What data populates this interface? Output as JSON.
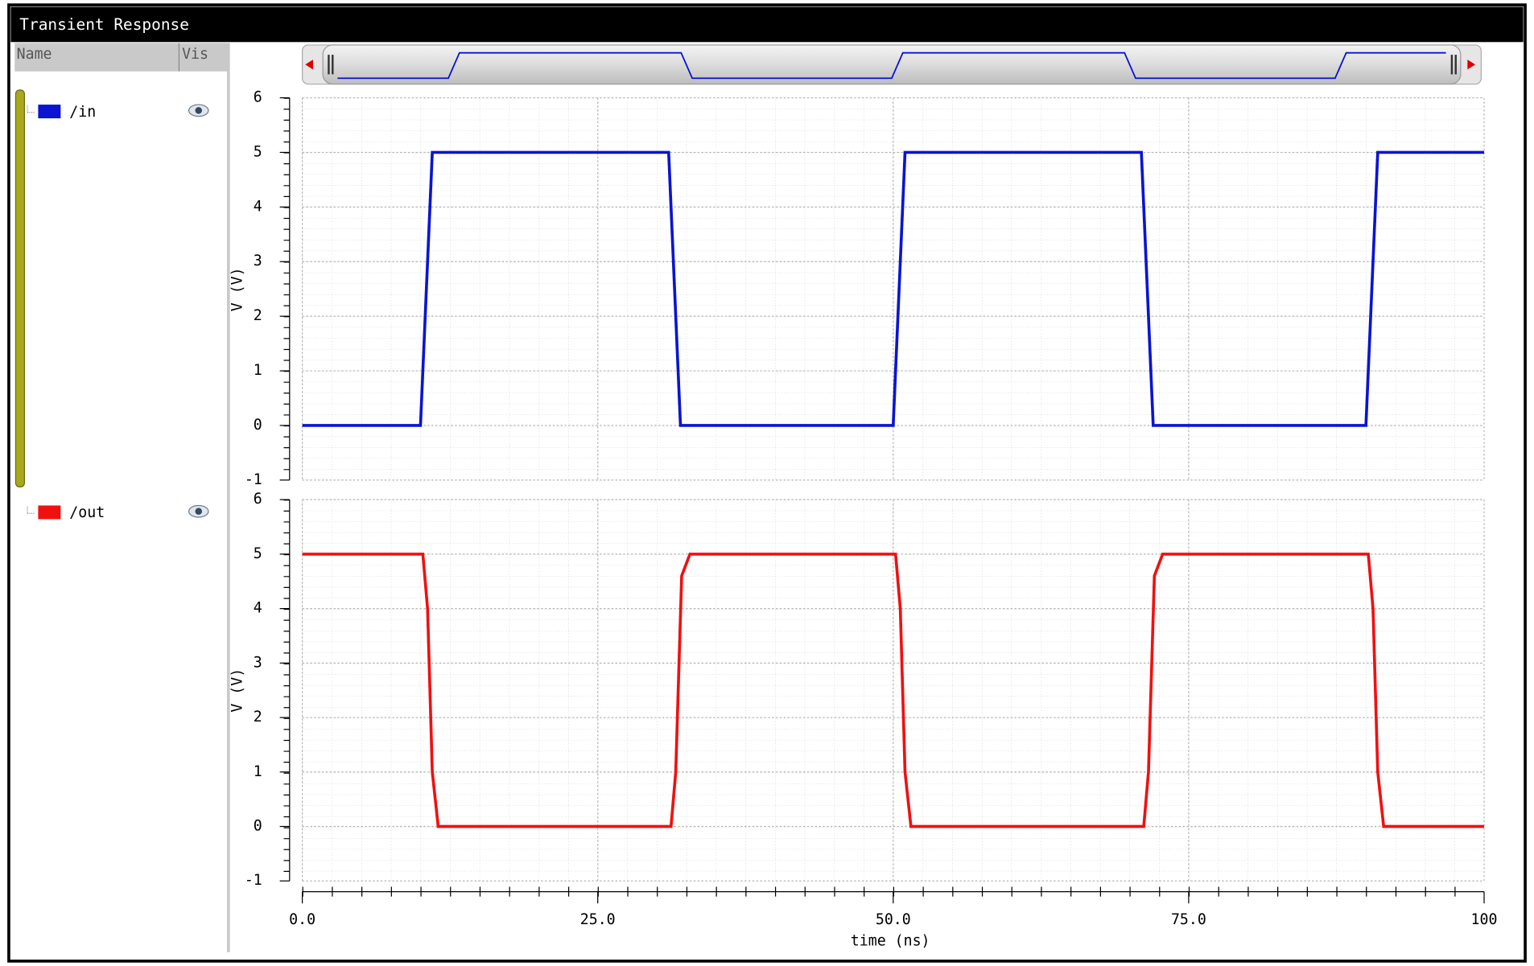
{
  "window_title": "Transient Response",
  "panel": {
    "name_header": "Name",
    "vis_header": "Vis"
  },
  "chart_data": [
    {
      "type": "line",
      "ylabel": "V (V)",
      "x": [
        0,
        10,
        11,
        31,
        32,
        50,
        51,
        71,
        72,
        90,
        91,
        100
      ],
      "series": [
        {
          "name": "/in",
          "color": "#0a14d2",
          "values": [
            0,
            0,
            5,
            5,
            0,
            0,
            5,
            5,
            0,
            0,
            5,
            5
          ]
        }
      ],
      "xlim": [
        0,
        100
      ],
      "ylim": [
        -1,
        6
      ],
      "yticks": [
        -1,
        0,
        1,
        2,
        3,
        4,
        5,
        6
      ],
      "grid": true
    },
    {
      "type": "line",
      "ylabel": "V (V)",
      "xlabel": "time (ns)",
      "x": [
        0,
        10.2,
        10.6,
        11.0,
        11.5,
        31.2,
        31.6,
        32.1,
        32.8,
        50.2,
        50.6,
        51.0,
        51.5,
        71.2,
        71.6,
        72.1,
        72.8,
        90.2,
        90.6,
        91.0,
        91.5,
        100
      ],
      "series": [
        {
          "name": "/out",
          "color": "#f01010",
          "values": [
            5,
            5,
            4,
            1,
            0,
            0,
            1,
            4.6,
            5,
            5,
            4,
            1,
            0,
            0,
            1,
            4.6,
            5,
            5,
            4,
            1,
            0,
            0
          ]
        }
      ],
      "xlim": [
        0,
        100
      ],
      "xticks": [
        {
          "value": 0,
          "label": "0.0"
        },
        {
          "value": 25,
          "label": "25.0"
        },
        {
          "value": 50,
          "label": "50.0"
        },
        {
          "value": 75,
          "label": "75.0"
        },
        100
      ],
      "ylim": [
        -1,
        6
      ],
      "yticks": [
        -1,
        0,
        1,
        2,
        3,
        4,
        5,
        6
      ],
      "grid": true
    }
  ]
}
